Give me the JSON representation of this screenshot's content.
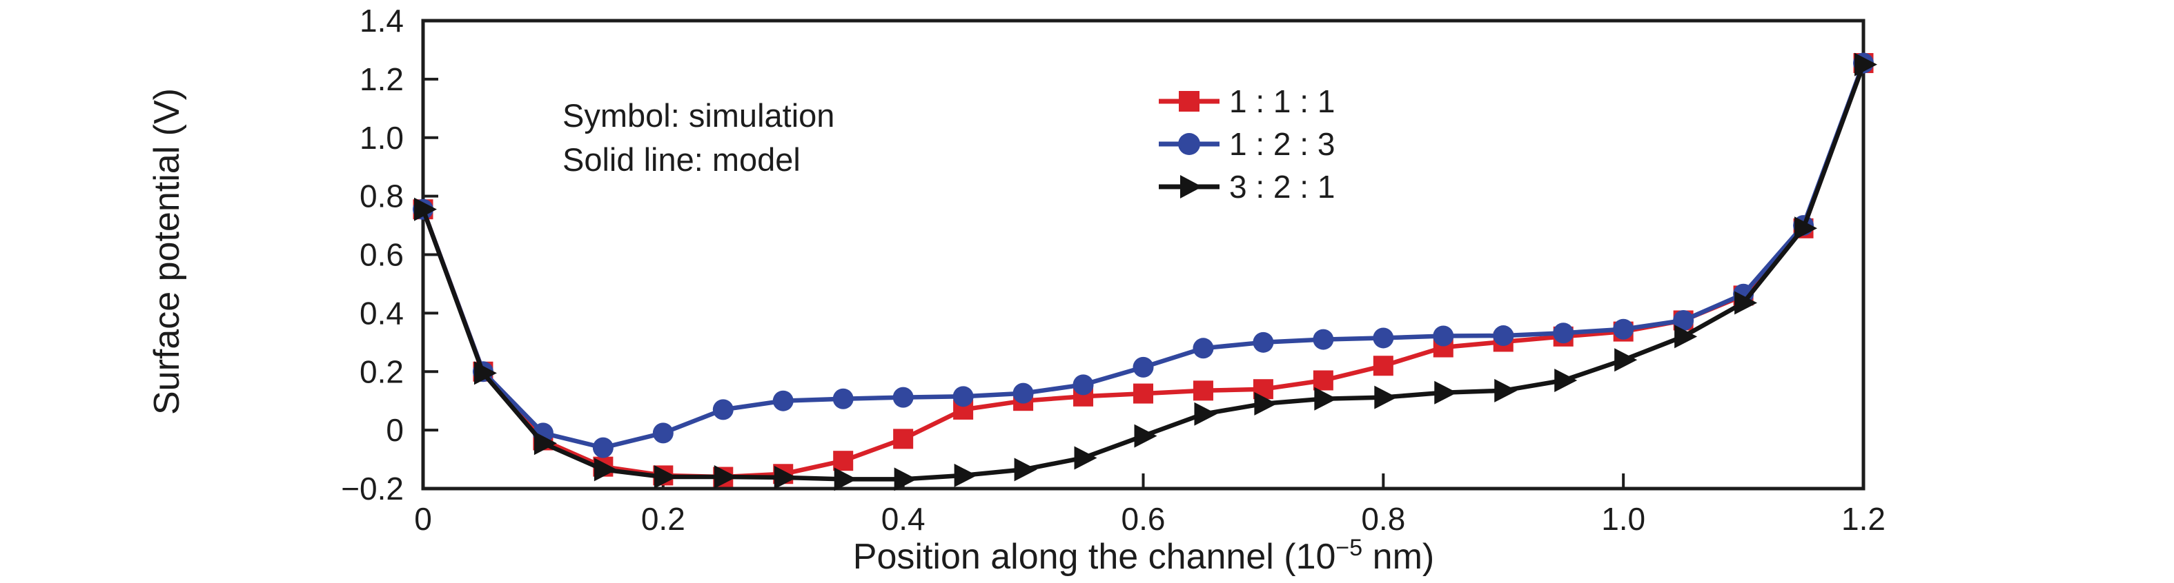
{
  "chart_data": {
    "type": "line",
    "title": "",
    "xlabel": "Position along the channel (10−5 nm)",
    "xlabel_parts": {
      "main": "Position along the channel (10",
      "sup": "−5",
      "tail": " nm)"
    },
    "ylabel": "Surface potential (V)",
    "xlim": [
      0,
      1.2
    ],
    "ylim": [
      -0.2,
      1.4
    ],
    "grid": false,
    "legend_position": "top-center-right",
    "x_ticks": [
      {
        "value": 0.0,
        "label": "0"
      },
      {
        "value": 0.2,
        "label": "0.2"
      },
      {
        "value": 0.4,
        "label": "0.4"
      },
      {
        "value": 0.6,
        "label": "0.6"
      },
      {
        "value": 0.8,
        "label": "0.8"
      },
      {
        "value": 1.0,
        "label": "1.0"
      },
      {
        "value": 1.2,
        "label": "1.2"
      }
    ],
    "y_ticks": [
      {
        "value": -0.2,
        "label": "−0.2"
      },
      {
        "value": 0.0,
        "label": "0"
      },
      {
        "value": 0.2,
        "label": "0.2"
      },
      {
        "value": 0.4,
        "label": "0.4"
      },
      {
        "value": 0.6,
        "label": "0.6"
      },
      {
        "value": 0.8,
        "label": "0.8"
      },
      {
        "value": 1.0,
        "label": "1.0"
      },
      {
        "value": 1.2,
        "label": "1.2"
      },
      {
        "value": 1.4,
        "label": "1.4"
      }
    ],
    "annotation": {
      "line1": "Symbol: simulation",
      "line2": "Solid line: model"
    },
    "legend": [
      {
        "label": "1 : 1 : 1",
        "color": "#d92128",
        "marker": "square"
      },
      {
        "label": "1 : 2 : 3",
        "color": "#31479e",
        "marker": "circle"
      },
      {
        "label": "3 : 2 : 1",
        "color": "#141414",
        "marker": "triangle-right"
      }
    ],
    "x": [
      0.0,
      0.05,
      0.1,
      0.15,
      0.2,
      0.25,
      0.3,
      0.35,
      0.4,
      0.45,
      0.5,
      0.55,
      0.6,
      0.65,
      0.7,
      0.75,
      0.8,
      0.85,
      0.9,
      0.95,
      1.0,
      1.05,
      1.1,
      1.15,
      1.2
    ],
    "series": [
      {
        "name": "1 : 1 : 1",
        "marker": "square",
        "color": "#d92128",
        "values": [
          0.755,
          0.2,
          -0.035,
          -0.125,
          -0.155,
          -0.16,
          -0.15,
          -0.105,
          -0.03,
          0.07,
          0.1,
          0.115,
          0.125,
          0.135,
          0.14,
          0.17,
          0.22,
          0.283,
          0.302,
          0.32,
          0.337,
          0.375,
          0.46,
          0.69,
          1.255
        ]
      },
      {
        "name": "1 : 2 : 3",
        "marker": "circle",
        "color": "#31479e",
        "values": [
          0.755,
          0.2,
          -0.01,
          -0.06,
          -0.01,
          0.07,
          0.1,
          0.107,
          0.112,
          0.115,
          0.126,
          0.155,
          0.215,
          0.28,
          0.3,
          0.31,
          0.315,
          0.322,
          0.323,
          0.332,
          0.345,
          0.375,
          0.465,
          0.7,
          1.255
        ]
      },
      {
        "name": "3 : 2 : 1",
        "marker": "triangle-right",
        "color": "#141414",
        "values": [
          0.755,
          0.195,
          -0.045,
          -0.135,
          -0.16,
          -0.16,
          -0.162,
          -0.168,
          -0.168,
          -0.155,
          -0.135,
          -0.095,
          -0.02,
          0.055,
          0.09,
          0.107,
          0.112,
          0.128,
          0.135,
          0.17,
          0.24,
          0.32,
          0.435,
          0.69,
          1.25
        ]
      }
    ]
  }
}
